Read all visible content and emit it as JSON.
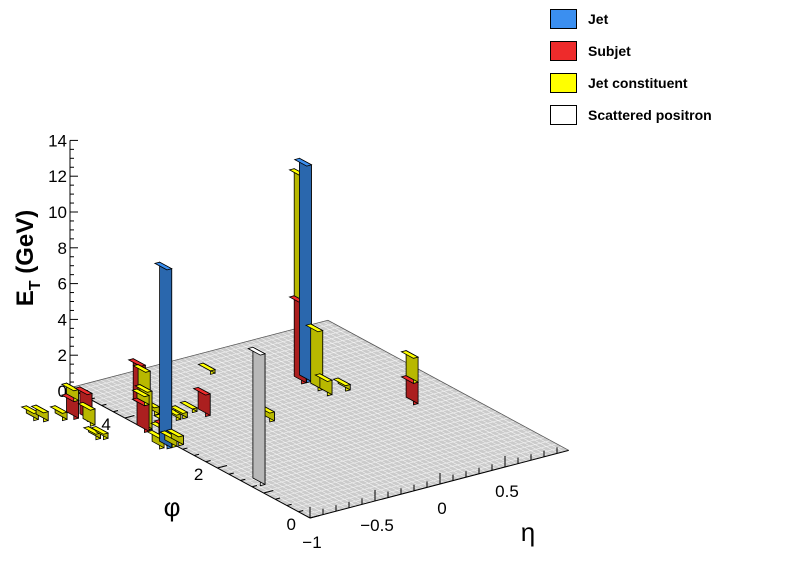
{
  "chart_data": {
    "type": "lego3d",
    "zlabel_main": "E",
    "zlabel_sub": "T",
    "zlabel_unit": " (GeV)",
    "xlabel": "η",
    "ylabel": "φ",
    "zlim": [
      0,
      14
    ],
    "z_ticks": [
      "0",
      "2",
      "4",
      "6",
      "8",
      "10",
      "12",
      "14"
    ],
    "eta_ticks": [
      {
        "v": -1,
        "label": "−1"
      },
      {
        "v": -0.5,
        "label": "−0.5"
      },
      {
        "v": 0,
        "label": "0"
      },
      {
        "v": 0.5,
        "label": "0.5"
      }
    ],
    "phi_ticks": [
      {
        "v": 0,
        "label": "0"
      },
      {
        "v": 2,
        "label": "2"
      },
      {
        "v": 4,
        "label": "4"
      }
    ],
    "grid": true,
    "legend_position": "top-right",
    "legend": [
      {
        "key": "jet",
        "label": "Jet",
        "color": "#3b8ff0"
      },
      {
        "key": "subjet",
        "label": "Subjet",
        "color": "#ee2b2b"
      },
      {
        "key": "const",
        "label": "Jet constituent",
        "color": "#ffff00"
      },
      {
        "key": "pos",
        "label": "Scattered positron",
        "color": "#ffffff"
      }
    ],
    "towers": [
      {
        "eta": -1.06,
        "phi": 3.0,
        "stack": [
          {
            "t": "jet",
            "z": 10.0
          }
        ]
      },
      {
        "eta": -1.1,
        "phi": 3.05,
        "stack": [
          {
            "t": "const",
            "z": 0.6
          }
        ]
      },
      {
        "eta": -0.93,
        "phi": 1.35,
        "stack": [
          {
            "t": "pos",
            "z": 7.3
          }
        ]
      },
      {
        "eta": 0.26,
        "phi": 3.8,
        "stack": [
          {
            "t": "subjet",
            "z": 4.5
          },
          {
            "t": "const",
            "z": 11.6
          }
        ]
      },
      {
        "eta": 0.3,
        "phi": 3.8,
        "stack": [
          {
            "t": "jet",
            "z": 12.1
          }
        ]
      },
      {
        "eta": 0.28,
        "phi": 3.5,
        "stack": [
          {
            "t": "const",
            "z": 3.3
          }
        ]
      },
      {
        "eta": 0.28,
        "phi": 3.3,
        "stack": [
          {
            "t": "const",
            "z": 0.8
          }
        ]
      },
      {
        "eta": 0.64,
        "phi": 2.45,
        "stack": [
          {
            "t": "subjet",
            "z": 1.2
          },
          {
            "t": "const",
            "z": 2.6
          }
        ]
      },
      {
        "eta": -1.21,
        "phi": 4.3,
        "stack": [
          {
            "t": "subjet",
            "z": 1.5
          }
        ]
      },
      {
        "eta": -1.26,
        "phi": 4.45,
        "stack": [
          {
            "t": "subjet",
            "z": 1.0
          },
          {
            "t": "const",
            "z": 1.6
          }
        ]
      },
      {
        "eta": -1.02,
        "phi": 3.6,
        "stack": [
          {
            "t": "subjet",
            "z": 1.5
          },
          {
            "t": "const",
            "z": 2.0
          }
        ]
      },
      {
        "eta": -0.98,
        "phi": 3.65,
        "stack": [
          {
            "t": "const",
            "z": 2.1
          }
        ]
      },
      {
        "eta": -1.03,
        "phi": 3.1,
        "stack": [
          {
            "t": "subjet",
            "z": 1.0
          },
          {
            "t": "const",
            "z": 1.3
          }
        ]
      },
      {
        "eta": -0.8,
        "phi": 4.3,
        "stack": [
          {
            "t": "subjet",
            "z": 2.3
          }
        ]
      },
      {
        "eta": -0.78,
        "phi": 4.25,
        "stack": [
          {
            "t": "const",
            "z": 2.0
          }
        ]
      },
      {
        "eta": -0.55,
        "phi": 3.6,
        "stack": [
          {
            "t": "subjet",
            "z": 1.2
          }
        ]
      },
      {
        "eta": -1.48,
        "phi": 4.7,
        "stack": [
          {
            "t": "const",
            "z": 0.4
          }
        ]
      },
      {
        "eta": -1.44,
        "phi": 4.6,
        "stack": [
          {
            "t": "const",
            "z": 0.5
          }
        ]
      },
      {
        "eta": -1.33,
        "phi": 4.5,
        "stack": [
          {
            "t": "const",
            "z": 0.4
          }
        ]
      },
      {
        "eta": -1.24,
        "phi": 4.15,
        "stack": [
          {
            "t": "const",
            "z": 0.9
          }
        ]
      },
      {
        "eta": -1.34,
        "phi": 3.75,
        "stack": [
          {
            "t": "const",
            "z": 0.3
          }
        ]
      },
      {
        "eta": -1.3,
        "phi": 3.7,
        "stack": [
          {
            "t": "const",
            "z": 0.3
          }
        ]
      },
      {
        "eta": -1.02,
        "phi": 3.0,
        "stack": [
          {
            "t": "const",
            "z": 0.5
          }
        ]
      },
      {
        "eta": -0.97,
        "phi": 3.0,
        "stack": [
          {
            "t": "const",
            "z": 0.5
          }
        ]
      },
      {
        "eta": -0.93,
        "phi": 3.45,
        "stack": [
          {
            "t": "const",
            "z": 0.2
          }
        ]
      },
      {
        "eta": -0.8,
        "phi": 4.0,
        "stack": [
          {
            "t": "const",
            "z": 0.4
          }
        ]
      },
      {
        "eta": -0.74,
        "phi": 3.7,
        "stack": [
          {
            "t": "const",
            "z": 0.3
          }
        ]
      },
      {
        "eta": -0.69,
        "phi": 3.7,
        "stack": [
          {
            "t": "const",
            "z": 0.3
          }
        ]
      },
      {
        "eta": -0.58,
        "phi": 3.8,
        "stack": [
          {
            "t": "const",
            "z": 0.2
          }
        ]
      },
      {
        "eta": -0.27,
        "phi": 3.0,
        "stack": [
          {
            "t": "const",
            "z": 0.5
          }
        ]
      },
      {
        "eta": -0.12,
        "phi": 4.7,
        "stack": [
          {
            "t": "const",
            "z": 0.2
          }
        ]
      },
      {
        "eta": 0.42,
        "phi": 3.3,
        "stack": [
          {
            "t": "const",
            "z": 0.3
          }
        ]
      }
    ]
  }
}
